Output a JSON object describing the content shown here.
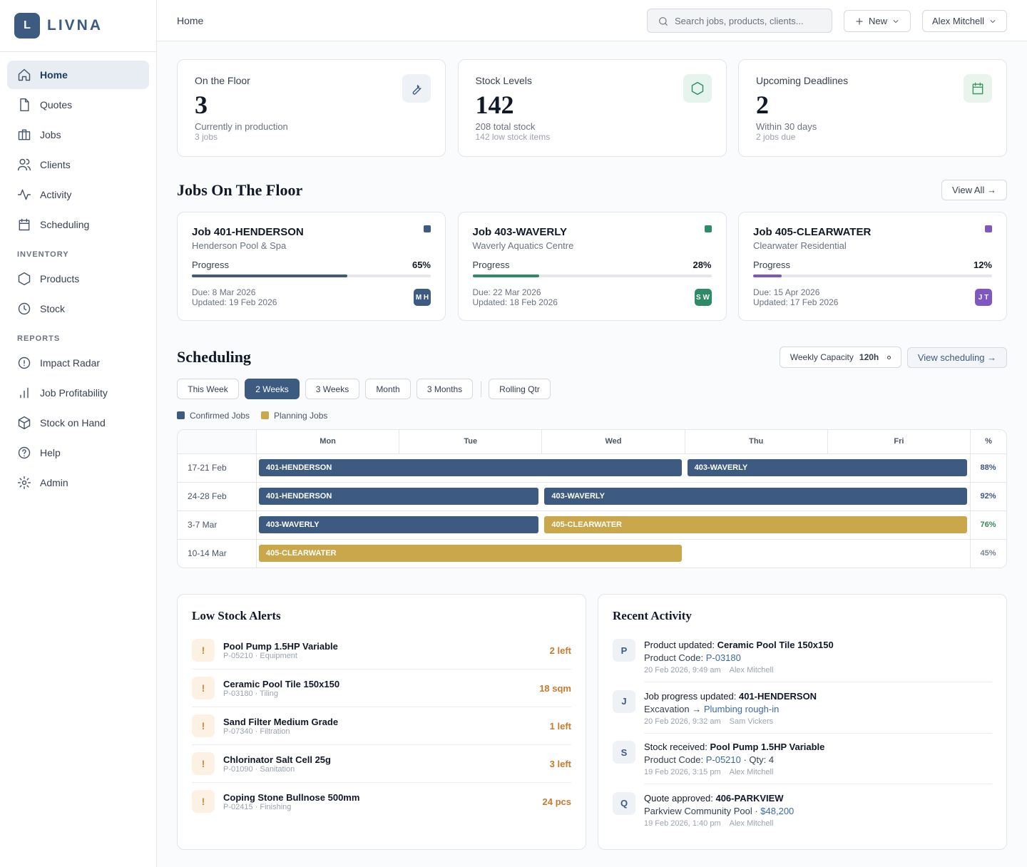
{
  "sidebar": {
    "logo_letter": "L",
    "brand": "LIVNA",
    "nav": [
      {
        "label": "Home",
        "active": true
      },
      {
        "label": "Quotes"
      },
      {
        "label": "Jobs"
      },
      {
        "label": "Clients"
      },
      {
        "label": "Activity"
      },
      {
        "label": "Scheduling"
      }
    ],
    "sections": [
      {
        "title": "INVENTORY",
        "items": [
          "Products",
          "Stock"
        ]
      },
      {
        "title": "REPORTS",
        "items": [
          "Impact Radar",
          "Job Profitability",
          "Stock on Hand",
          "Help",
          "Admin"
        ]
      }
    ]
  },
  "header": {
    "breadcrumb": "Home",
    "search_placeholder": "Search jobs, products, clients...",
    "new_button": "New",
    "user": "Alex Mitchell"
  },
  "stats": [
    {
      "label": "On the Floor",
      "value": 3,
      "sub": "Currently in production",
      "note": "3 jobs",
      "icon_bg": "#eef1f6",
      "icon_color": "#3d5a80"
    },
    {
      "label": "Stock Levels",
      "value": 142,
      "sub": "208 total stock",
      "note": "142 low stock items",
      "icon_bg": "#e6f4ee",
      "icon_color": "#2e8b67"
    },
    {
      "label": "Upcoming Deadlines",
      "value": 2,
      "sub": "Within 30 days",
      "note": "2 jobs due",
      "icon_bg": "#e8f4ec",
      "icon_color": "#3a9b5f"
    }
  ],
  "jobs_section": {
    "title": "Jobs On The Floor",
    "view_all": "View All →"
  },
  "jobs": [
    {
      "title": "Job 401-HENDERSON",
      "client": "Henderson Pool & Spa",
      "progress_label": "Progress",
      "progress": {
        "value": 65,
        "label": "65%"
      },
      "due": "Due: 8 Mar 2026",
      "updated": "Updated: 19 Feb 2026",
      "initials": "M H",
      "color": "#3d5a80"
    },
    {
      "title": "Job 403-WAVERLY",
      "client": "Waverly Aquatics Centre",
      "progress_label": "Progress",
      "progress": {
        "value": 28,
        "label": "28%"
      },
      "due": "Due: 22 Mar 2026",
      "updated": "Updated: 18 Feb 2026",
      "initials": "S W",
      "color": "#2e8b67"
    },
    {
      "title": "Job 405-CLEARWATER",
      "client": "Clearwater Residential",
      "progress_label": "Progress",
      "progress": {
        "value": 12,
        "label": "12%"
      },
      "due": "Due: 15 Apr 2026",
      "updated": "Updated: 17 Feb 2026",
      "initials": "J T",
      "color": "#7e57c2"
    }
  ],
  "scheduling": {
    "title": "Scheduling",
    "capacity_label": "Weekly Capacity",
    "capacity": "120h",
    "view": "View scheduling →",
    "ranges": [
      "This Week",
      "2 Weeks",
      "3 Weeks",
      "Month",
      "3 Months",
      "Rolling Qtr"
    ],
    "active_range": 1,
    "legend": [
      {
        "name": "Confirmed Jobs",
        "color": "#3d5a80"
      },
      {
        "name": "Planning Jobs",
        "color": "#c9a74a"
      }
    ],
    "days": [
      "Mon",
      "Tue",
      "Wed",
      "Thu",
      "Fri"
    ],
    "pct_header": "%",
    "rows": [
      {
        "week": "17-21 Feb",
        "bars": [
          {
            "label": "401-HENDERSON",
            "start": 0,
            "span": 3,
            "kind": 0
          },
          {
            "label": "403-WAVERLY",
            "start": 3,
            "span": 2,
            "kind": 0
          }
        ],
        "utilization": {
          "value": 88,
          "label": "88%"
        },
        "pct_color": "#3d5a80"
      },
      {
        "week": "24-28 Feb",
        "bars": [
          {
            "label": "401-HENDERSON",
            "start": 0,
            "span": 2,
            "kind": 0
          },
          {
            "label": "403-WAVERLY",
            "start": 2,
            "span": 3,
            "kind": 0
          }
        ],
        "utilization": {
          "value": 92,
          "label": "92%"
        },
        "pct_color": "#3d5a80"
      },
      {
        "week": "3-7 Mar",
        "bars": [
          {
            "label": "403-WAVERLY",
            "start": 0,
            "span": 2,
            "kind": 0
          },
          {
            "label": "405-CLEARWATER",
            "start": 2,
            "span": 3,
            "kind": 1
          }
        ],
        "utilization": {
          "value": 76,
          "label": "76%"
        },
        "pct_color": "#3a8a5a"
      },
      {
        "week": "10-14 Mar",
        "bars": [
          {
            "label": "405-CLEARWATER",
            "start": 0,
            "span": 3,
            "kind": 1
          }
        ],
        "utilization": {
          "value": 45,
          "label": "45%"
        },
        "pct_color": "#7a8494"
      }
    ]
  },
  "low_stock": {
    "title": "Low Stock Alerts",
    "icon": "!",
    "items": [
      {
        "name": "Pool Pump 1.5HP Variable",
        "meta": "P-05210 · Equipment",
        "qty": "2 left"
      },
      {
        "name": "Ceramic Pool Tile 150x150",
        "meta": "P-03180 · Tiling",
        "qty": "18 sqm"
      },
      {
        "name": "Sand Filter Medium Grade",
        "meta": "P-07340 · Filtration",
        "qty": "1 left"
      },
      {
        "name": "Chlorinator Salt Cell 25g",
        "meta": "P-01090 · Sanitation",
        "qty": "3 left"
      },
      {
        "name": "Coping Stone Bullnose 500mm",
        "meta": "P-02415 · Finishing",
        "qty": "24 pcs"
      }
    ]
  },
  "activity": {
    "title": "Recent Activity",
    "items": [
      {
        "avatar": "P",
        "text": "Product updated: ",
        "bold": "Ceramic Pool Tile 150x150",
        "line2": "Product Code: ",
        "link": "P-03180",
        "time": "20 Feb 2026, 9:49 am",
        "user": "Alex Mitchell"
      },
      {
        "avatar": "J",
        "text": "Job progress updated: ",
        "bold": "401-HENDERSON",
        "line2": "Excavation → ",
        "link": "Plumbing rough-in",
        "time": "20 Feb 2026, 9:32 am",
        "user": "Sam Vickers"
      },
      {
        "avatar": "S",
        "text": "Stock received: ",
        "bold": "Pool Pump 1.5HP Variable",
        "line2": "Product Code: ",
        "link": "P-05210",
        "tail": " · Qty: 4",
        "time": "19 Feb 2026, 3:15 pm",
        "user": "Alex Mitchell"
      },
      {
        "avatar": "Q",
        "text": "Quote approved: ",
        "bold": "406-PARKVIEW",
        "line2": "Parkview Community Pool · ",
        "link": "$48,200",
        "time": "19 Feb 2026, 1:40 pm",
        "user": "Alex Mitchell"
      }
    ]
  }
}
